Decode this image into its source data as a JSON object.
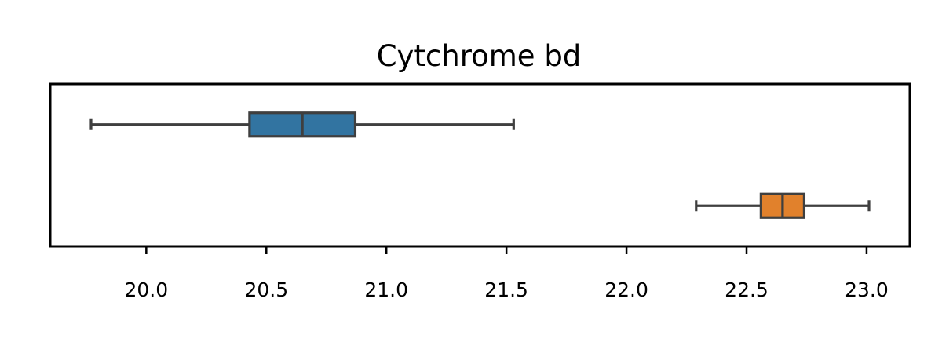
{
  "chart_data": {
    "type": "boxplot",
    "orientation": "horizontal",
    "title": "Cytchrome bd",
    "xlabel": "",
    "ylabel": "",
    "xlim": [
      19.6,
      23.18
    ],
    "xticks": [
      20.0,
      20.5,
      21.0,
      21.5,
      22.0,
      22.5,
      23.0
    ],
    "xtick_labels": [
      "20.0",
      "20.5",
      "21.0",
      "21.5",
      "22.0",
      "22.5",
      "23.0"
    ],
    "grid": false,
    "legend": "none",
    "series": [
      {
        "color": "#3274a1",
        "whisker_low": 19.77,
        "q1": 20.43,
        "median": 20.65,
        "q3": 20.87,
        "whisker_high": 21.53
      },
      {
        "color": "#e1812c",
        "whisker_low": 22.29,
        "q1": 22.56,
        "median": 22.65,
        "q3": 22.74,
        "whisker_high": 23.01
      }
    ]
  }
}
